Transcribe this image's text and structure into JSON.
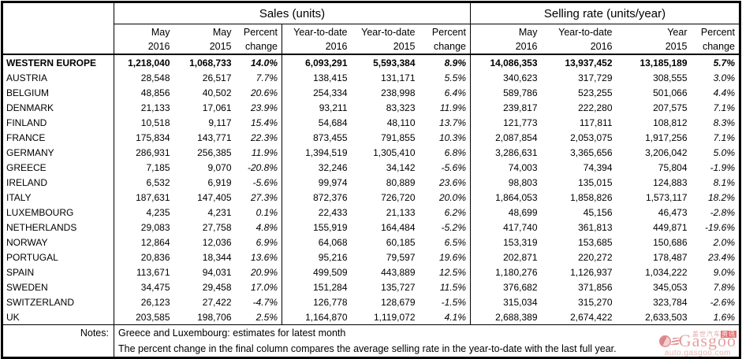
{
  "table": {
    "header_groups": [
      {
        "label": "Sales (units)"
      },
      {
        "label": "Selling rate (units/year)"
      }
    ],
    "columns": [
      {
        "line1": "May",
        "line2": "2016"
      },
      {
        "line1": "May",
        "line2": "2015"
      },
      {
        "line1": "Percent",
        "line2": "change"
      },
      {
        "line1": "Year-to-date",
        "line2": "2016"
      },
      {
        "line1": "Year-to-date",
        "line2": "2015"
      },
      {
        "line1": "Percent",
        "line2": "change"
      },
      {
        "line1": "May",
        "line2": "2016"
      },
      {
        "line1": "Year-to-date",
        "line2": "2016"
      },
      {
        "line1": "Year",
        "line2": "2015"
      },
      {
        "line1": "Percent",
        "line2": "change"
      }
    ],
    "rows": [
      {
        "country": "WESTERN EUROPE",
        "bold": true,
        "cells": [
          "1,218,040",
          "1,068,733",
          "14.0%",
          "6,093,291",
          "5,593,384",
          "8.9%",
          "14,086,353",
          "13,937,452",
          "13,185,189",
          "5.7%"
        ]
      },
      {
        "country": "AUSTRIA",
        "bold": false,
        "cells": [
          "28,548",
          "26,517",
          "7.7%",
          "138,415",
          "131,171",
          "5.5%",
          "340,623",
          "317,729",
          "308,555",
          "3.0%"
        ]
      },
      {
        "country": "BELGIUM",
        "bold": false,
        "cells": [
          "48,856",
          "40,502",
          "20.6%",
          "254,334",
          "238,998",
          "6.4%",
          "589,786",
          "523,255",
          "501,066",
          "4.4%"
        ]
      },
      {
        "country": "DENMARK",
        "bold": false,
        "cells": [
          "21,133",
          "17,061",
          "23.9%",
          "93,211",
          "83,323",
          "11.9%",
          "239,817",
          "222,280",
          "207,575",
          "7.1%"
        ]
      },
      {
        "country": "FINLAND",
        "bold": false,
        "cells": [
          "10,518",
          "9,117",
          "15.4%",
          "54,684",
          "48,110",
          "13.7%",
          "121,773",
          "117,811",
          "108,812",
          "8.3%"
        ]
      },
      {
        "country": "FRANCE",
        "bold": false,
        "cells": [
          "175,834",
          "143,771",
          "22.3%",
          "873,455",
          "791,855",
          "10.3%",
          "2,087,854",
          "2,053,075",
          "1,917,256",
          "7.1%"
        ]
      },
      {
        "country": "GERMANY",
        "bold": false,
        "cells": [
          "286,931",
          "256,385",
          "11.9%",
          "1,394,519",
          "1,305,410",
          "6.8%",
          "3,286,631",
          "3,365,656",
          "3,206,042",
          "5.0%"
        ]
      },
      {
        "country": "GREECE",
        "bold": false,
        "cells": [
          "7,185",
          "9,070",
          "-20.8%",
          "32,246",
          "34,142",
          "-5.6%",
          "74,003",
          "74,394",
          "75,804",
          "-1.9%"
        ]
      },
      {
        "country": "IRELAND",
        "bold": false,
        "cells": [
          "6,532",
          "6,919",
          "-5.6%",
          "99,974",
          "80,889",
          "23.6%",
          "98,803",
          "135,015",
          "124,883",
          "8.1%"
        ]
      },
      {
        "country": "ITALY",
        "bold": false,
        "cells": [
          "187,631",
          "147,405",
          "27.3%",
          "872,376",
          "726,720",
          "20.0%",
          "1,864,053",
          "1,858,826",
          "1,573,117",
          "18.2%"
        ]
      },
      {
        "country": "LUXEMBOURG",
        "bold": false,
        "cells": [
          "4,235",
          "4,231",
          "0.1%",
          "22,433",
          "21,133",
          "6.2%",
          "48,699",
          "45,156",
          "46,473",
          "-2.8%"
        ]
      },
      {
        "country": "NETHERLANDS",
        "bold": false,
        "cells": [
          "29,083",
          "27,758",
          "4.8%",
          "155,919",
          "164,484",
          "-5.2%",
          "417,740",
          "361,813",
          "449,871",
          "-19.6%"
        ]
      },
      {
        "country": "NORWAY",
        "bold": false,
        "cells": [
          "12,864",
          "12,036",
          "6.9%",
          "64,068",
          "60,185",
          "6.5%",
          "153,319",
          "153,685",
          "150,686",
          "2.0%"
        ]
      },
      {
        "country": "PORTUGAL",
        "bold": false,
        "cells": [
          "20,836",
          "18,344",
          "13.6%",
          "95,216",
          "79,597",
          "19.6%",
          "202,871",
          "220,272",
          "178,487",
          "23.4%"
        ]
      },
      {
        "country": "SPAIN",
        "bold": false,
        "cells": [
          "113,671",
          "94,031",
          "20.9%",
          "499,509",
          "443,889",
          "12.5%",
          "1,180,276",
          "1,126,937",
          "1,034,222",
          "9.0%"
        ]
      },
      {
        "country": "SWEDEN",
        "bold": false,
        "cells": [
          "34,475",
          "29,458",
          "17.0%",
          "151,284",
          "135,727",
          "11.5%",
          "376,682",
          "371,856",
          "345,053",
          "7.8%"
        ]
      },
      {
        "country": "SWITZERLAND",
        "bold": false,
        "cells": [
          "26,123",
          "27,422",
          "-4.7%",
          "126,778",
          "128,679",
          "-1.5%",
          "315,034",
          "315,270",
          "323,784",
          "-2.6%"
        ]
      },
      {
        "country": "UK",
        "bold": false,
        "cells": [
          "203,585",
          "198,706",
          "2.5%",
          "1,164,870",
          "1,119,072",
          "4.1%",
          "2,688,389",
          "2,674,422",
          "2,633,503",
          "1.6%"
        ]
      }
    ],
    "notes_label": "Notes:",
    "notes": [
      "Greece and Luxembourg: estimates for latest month",
      "The percent change in the final column compares the average selling rate in the year-to-date with the last full year."
    ]
  },
  "watermark": {
    "brand": "Gasgoo",
    "cn_text": "盖世汽车",
    "cn_highlight": "资讯",
    "url": "auto.gasgoo.com",
    "accent_color": "#e29192"
  }
}
